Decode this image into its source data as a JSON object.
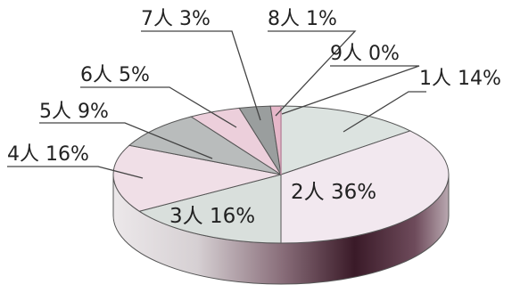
{
  "chart_data": {
    "type": "pie",
    "style": "3d",
    "slices": [
      {
        "label": "1人 14%",
        "value": 14,
        "color": "#dce3e0"
      },
      {
        "label": "2人 36%",
        "value": 36,
        "color": "#f2e8ef"
      },
      {
        "label": "3人 16%",
        "value": 16,
        "color": "#d9dfdc"
      },
      {
        "label": "4人 16%",
        "value": 16,
        "color": "#f0dfe7"
      },
      {
        "label": "5人 9%",
        "value": 9,
        "color": "#b9bcbc"
      },
      {
        "label": "6人 5%",
        "value": 5,
        "color": "#eccfdb"
      },
      {
        "label": "7人 3%",
        "value": 3,
        "color": "#9a9e9e"
      },
      {
        "label": "8人 1%",
        "value": 1,
        "color": "#e6b7c9"
      },
      {
        "label": "9人 0%",
        "value": 0,
        "color": "#ffffff"
      }
    ],
    "colors": {
      "side_dark": "#3a1a28",
      "side_light": "#d9d2d6",
      "outline": "#555555"
    }
  }
}
